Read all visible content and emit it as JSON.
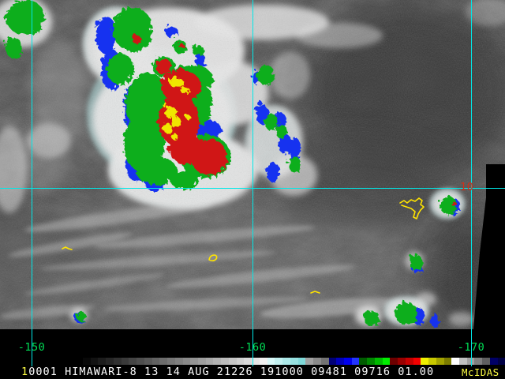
{
  "grid": {
    "color": "#00e8e8",
    "label_color": "#00dd55",
    "lon_labels": [
      {
        "text": "-150"
      },
      {
        "text": "-160"
      },
      {
        "text": "-170"
      }
    ],
    "lat_label": {
      "text": "10",
      "color": "#d23018"
    }
  },
  "coastlines": {
    "color": "#ffe400"
  },
  "status_bar": {
    "frame_id": "1",
    "text": "0001 HIMAWARI-8 13 14 AUG 21226 191000 09481 09716 01.00",
    "brand": "McIDAS",
    "accent_color": "#ffff44",
    "text_color": "#ffffff"
  },
  "colorbar": {
    "segments": [
      "#080808",
      "#121212",
      "#1c1c1c",
      "#262626",
      "#303030",
      "#3a3a3a",
      "#444444",
      "#4e4e4e",
      "#585858",
      "#626262",
      "#6c6c6c",
      "#767676",
      "#808080",
      "#8a8a8a",
      "#949494",
      "#9e9e9e",
      "#a8a8a8",
      "#b2b2b2",
      "#bcbcbc",
      "#c6c6c6",
      "#d0d0d0",
      "#dadada",
      "#e6e6e6",
      "#f2f2f2",
      "#d8f8f8",
      "#c2f0f0",
      "#ace8e8",
      "#96e0e0",
      "#80d8d8",
      "#a0a0a0",
      "#8a8a8a",
      "#747474",
      "#000077",
      "#0000bb",
      "#0000ee",
      "#2233ff",
      "#005c00",
      "#008800",
      "#00bb00",
      "#00ee00",
      "#6e0000",
      "#9a0000",
      "#c60000",
      "#f20000",
      "#eeee00",
      "#c8c800",
      "#a2a200",
      "#7c7c00",
      "#ffffff",
      "#c0c0c0",
      "#a0a0a0",
      "#808080",
      "#606060",
      "#000066",
      "#000044"
    ]
  }
}
